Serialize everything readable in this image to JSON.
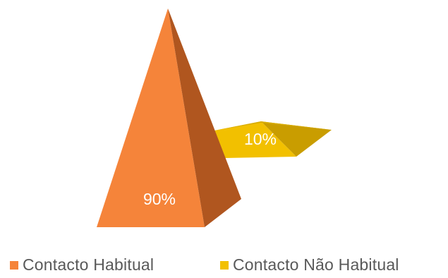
{
  "chart_data": {
    "type": "pie",
    "style": "3d-pyramid",
    "title": "",
    "categories": [
      "Contacto Habitual",
      "Contacto Não Habitual"
    ],
    "values": [
      90,
      10
    ],
    "data_labels": [
      "90%",
      "10%"
    ],
    "colors": [
      "#F5843A",
      "#F2C000"
    ],
    "legend_position": "bottom"
  },
  "colors": {
    "data_label_text": "#ffffff",
    "legend_text": "#595959"
  }
}
